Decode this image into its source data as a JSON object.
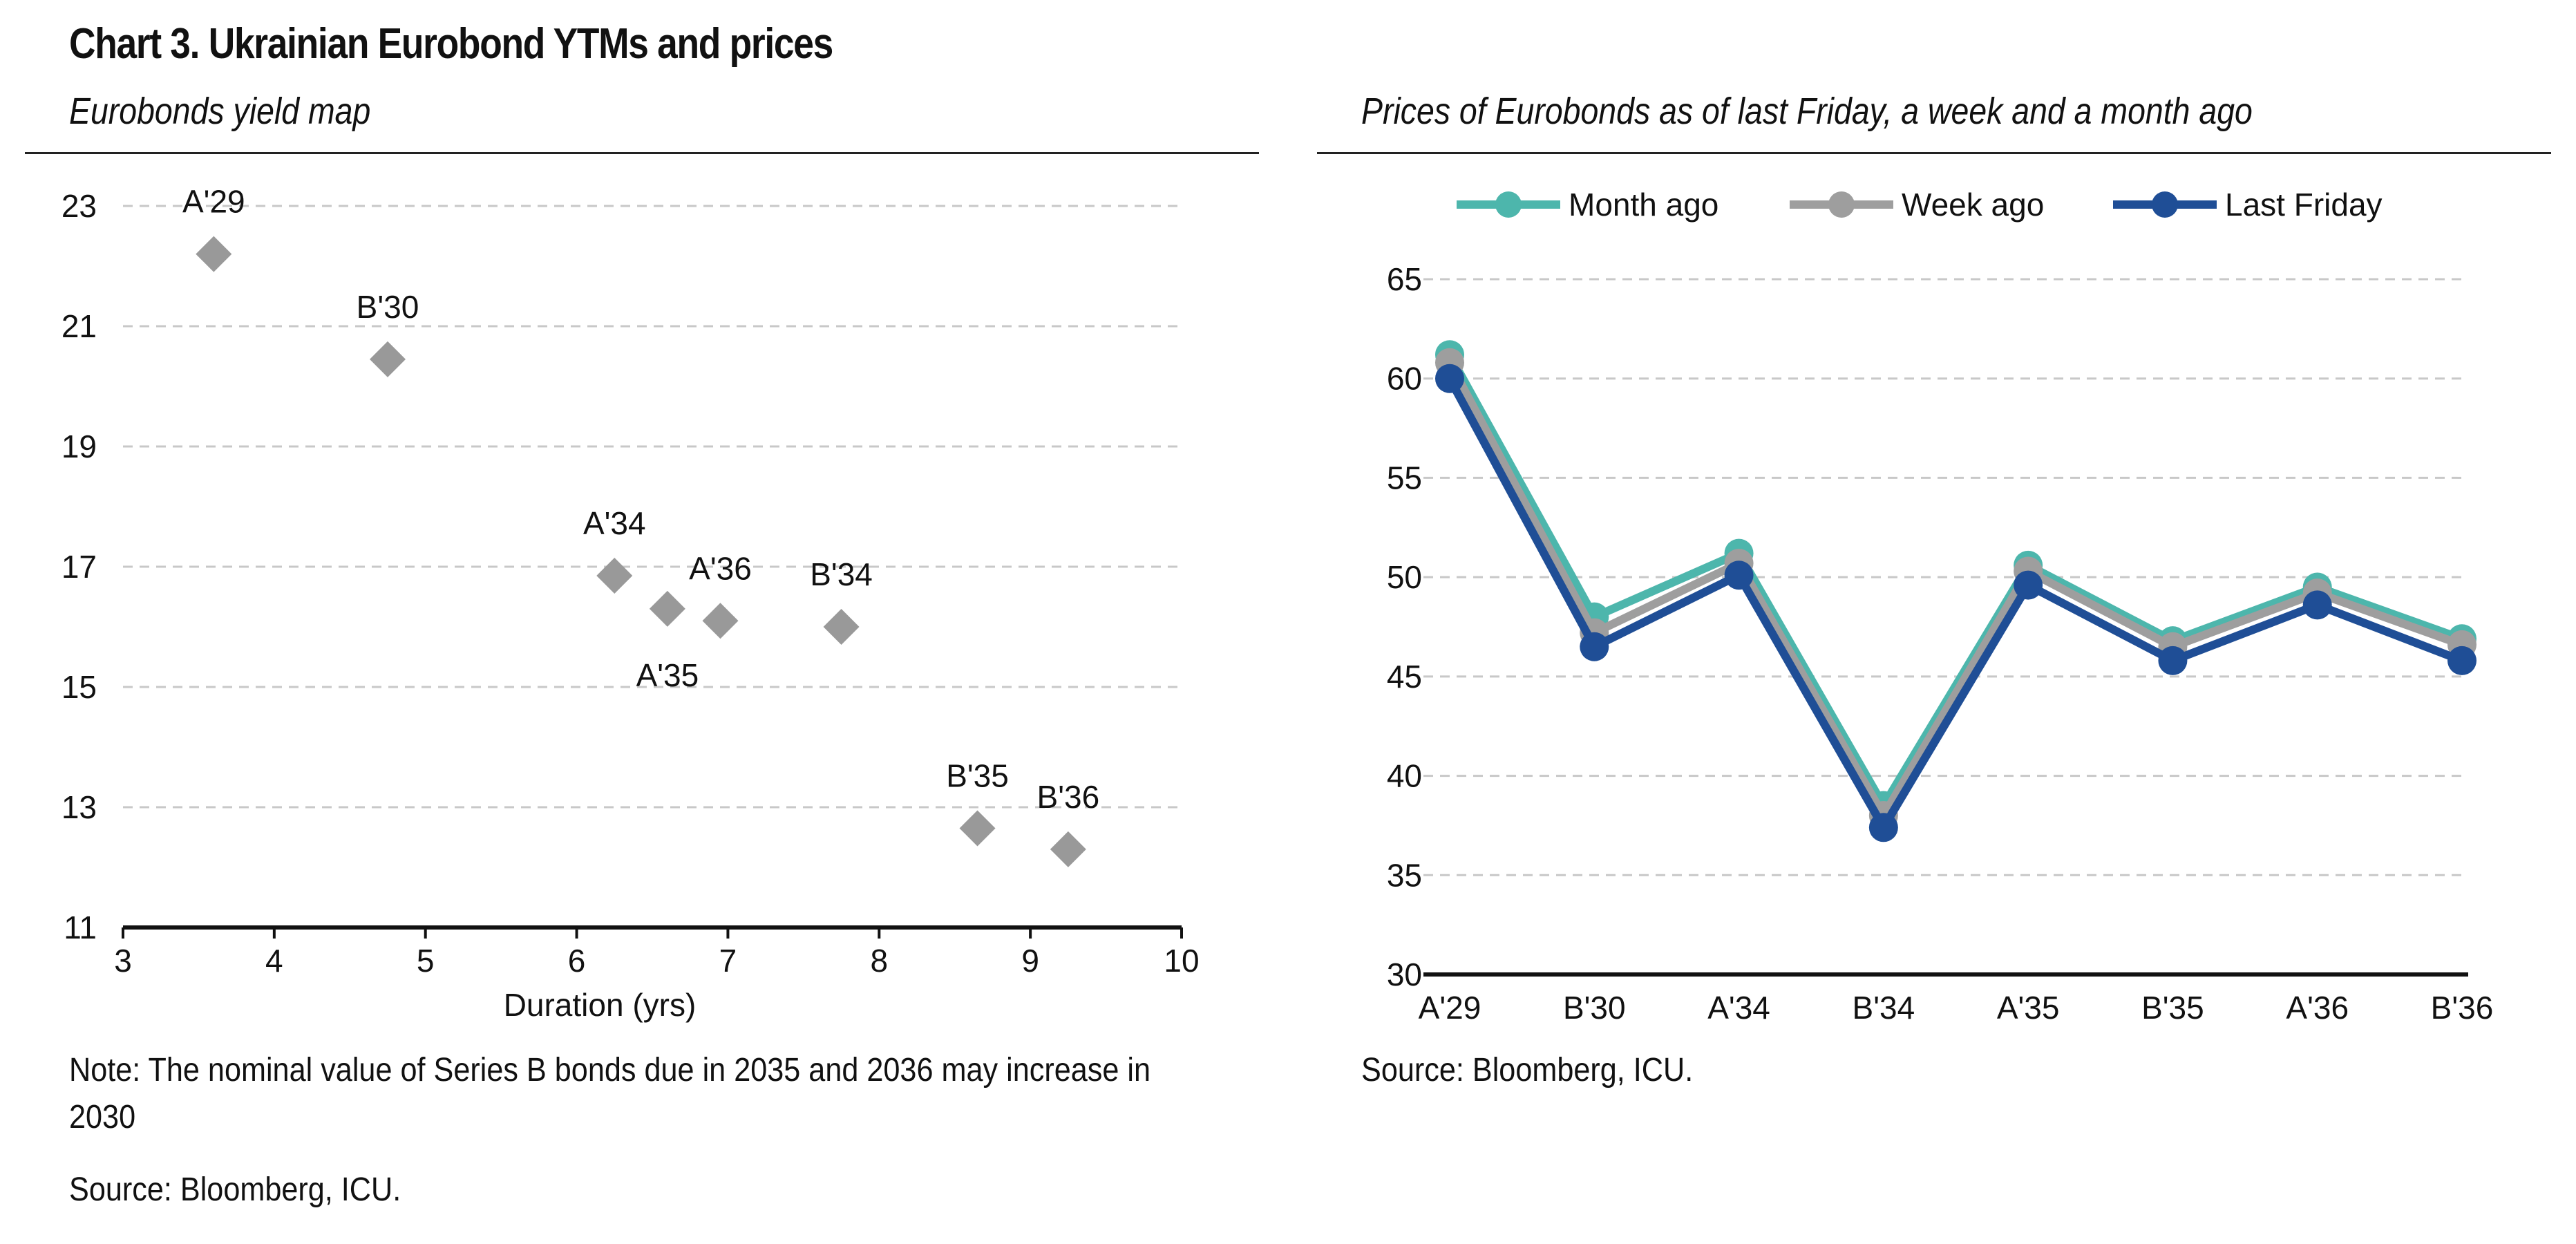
{
  "header": {
    "title": "Chart 3. Ukrainian Eurobond YTMs and prices"
  },
  "left_panel": {
    "title": "Eurobonds yield map",
    "note": "Note: The nominal value of Series B bonds due in 2035 and 2036 may increase in 2030",
    "source": "Source: Bloomberg, ICU."
  },
  "right_panel": {
    "title": "Prices of Eurobonds as of last Friday, a week and a month ago",
    "source": "Source: Bloomberg, ICU."
  },
  "chart_data": [
    {
      "type": "scatter",
      "title": "Eurobonds yield map",
      "xlabel": "Duration (yrs)",
      "ylabel": "",
      "xlim": [
        3,
        10
      ],
      "ylim": [
        11,
        23
      ],
      "xticks": [
        3,
        4,
        5,
        6,
        7,
        8,
        9,
        10
      ],
      "yticks": [
        11,
        13,
        15,
        17,
        19,
        21,
        23
      ],
      "grid": "horizontal dashed",
      "marker": "diamond",
      "marker_color": "#999999",
      "points": [
        {
          "label": "A'29",
          "x": 3.6,
          "y": 22.2,
          "label_pos": "above"
        },
        {
          "label": "B'30",
          "x": 4.75,
          "y": 20.45,
          "label_pos": "above"
        },
        {
          "label": "A'34",
          "x": 6.25,
          "y": 16.85,
          "label_pos": "above"
        },
        {
          "label": "A'35",
          "x": 6.6,
          "y": 16.3,
          "label_pos": "below"
        },
        {
          "label": "A'36",
          "x": 6.95,
          "y": 16.1,
          "label_pos": "above"
        },
        {
          "label": "B'34",
          "x": 7.75,
          "y": 16.0,
          "label_pos": "above"
        },
        {
          "label": "B'35",
          "x": 8.65,
          "y": 12.65,
          "label_pos": "above"
        },
        {
          "label": "B'36",
          "x": 9.25,
          "y": 12.3,
          "label_pos": "above"
        }
      ]
    },
    {
      "type": "line",
      "title": "Prices of Eurobonds as of last Friday, a week and a month ago",
      "xlabel": "",
      "ylabel": "",
      "categories": [
        "A'29",
        "B'30",
        "A'34",
        "B'34",
        "A'35",
        "B'35",
        "A'36",
        "B'36"
      ],
      "ylim": [
        30,
        65
      ],
      "yticks": [
        30,
        35,
        40,
        45,
        50,
        55,
        60,
        65
      ],
      "grid": "horizontal dashed",
      "legend": "top",
      "series": [
        {
          "name": "Month ago",
          "color": "#4DB6AC",
          "values": [
            61.2,
            48.0,
            51.2,
            38.5,
            50.6,
            46.8,
            49.5,
            46.9
          ]
        },
        {
          "name": "Week ago",
          "color": "#9E9E9E",
          "values": [
            60.8,
            47.2,
            50.7,
            38.0,
            50.3,
            46.5,
            49.2,
            46.6
          ]
        },
        {
          "name": "Last Friday",
          "color": "#1F4E96",
          "values": [
            60.0,
            46.5,
            50.1,
            37.4,
            49.6,
            45.8,
            48.6,
            45.8
          ]
        }
      ]
    }
  ]
}
